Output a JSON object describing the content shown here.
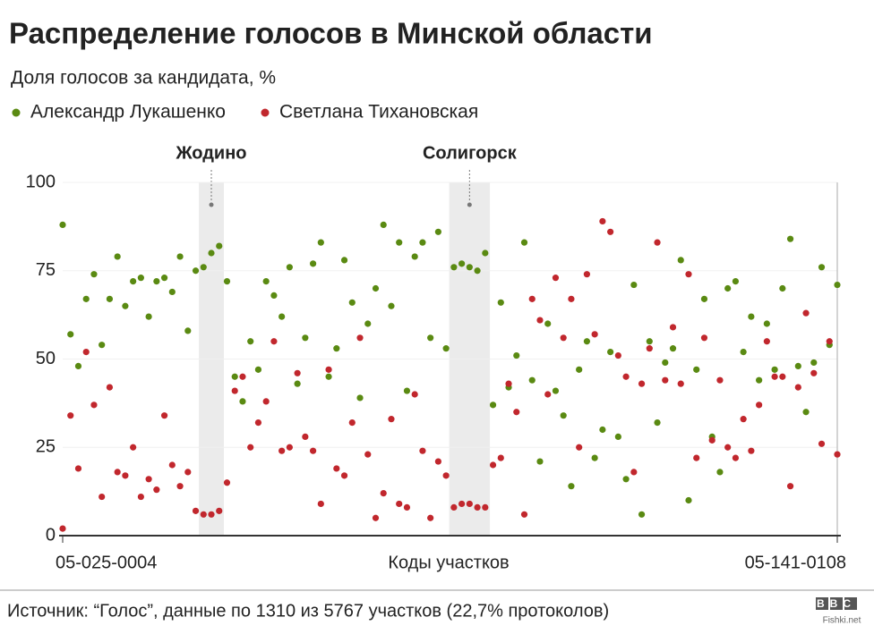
{
  "chart_data": {
    "type": "scatter",
    "title": "Распределение голосов в Минской области",
    "subtitle": "Доля голосов за кандидата, %",
    "xlabel": "Коды участков",
    "source": "Источник: “Голос”, данные по 1310 из 5767 участков (22,7% протоколов)",
    "logo": "BBC",
    "watermark": "Fishki.net",
    "ylim": [
      0,
      100
    ],
    "yticks": [
      0,
      25,
      50,
      75,
      100
    ],
    "grid": true,
    "annotations": [
      {
        "label": "Жодино",
        "from": 18,
        "to": 20
      },
      {
        "label": "Солигорск",
        "from": 50,
        "to": 54
      }
    ],
    "categories": [
      "05-025-0004",
      null,
      null,
      null,
      null,
      null,
      null,
      null,
      null,
      null,
      null,
      null,
      null,
      null,
      null,
      null,
      null,
      null,
      null,
      null,
      null,
      null,
      null,
      null,
      null,
      null,
      null,
      null,
      null,
      null,
      null,
      null,
      null,
      null,
      null,
      null,
      null,
      null,
      null,
      null,
      null,
      null,
      null,
      null,
      null,
      null,
      null,
      null,
      null,
      null,
      null,
      null,
      null,
      null,
      null,
      null,
      null,
      null,
      null,
      null,
      null,
      null,
      null,
      null,
      null,
      null,
      null,
      null,
      null,
      null,
      null,
      null,
      null,
      null,
      null,
      null,
      null,
      null,
      null,
      null,
      null,
      null,
      null,
      null,
      null,
      null,
      null,
      null,
      null,
      null,
      null,
      null,
      null,
      null,
      null,
      null,
      null,
      null,
      null,
      "05-141-0108"
    ],
    "series": [
      {
        "name": "Александр Лукашенко",
        "color": "#5a8a12",
        "values": [
          88,
          57,
          48,
          67,
          74,
          54,
          67,
          79,
          65,
          72,
          73,
          62,
          72,
          73,
          69,
          79,
          58,
          75,
          76,
          80,
          82,
          72,
          45,
          38,
          55,
          47,
          72,
          68,
          62,
          76,
          43,
          56,
          77,
          83,
          45,
          53,
          78,
          66,
          39,
          60,
          70,
          88,
          65,
          83,
          41,
          79,
          83,
          56,
          86,
          53,
          76,
          77,
          76,
          75,
          80,
          37,
          66,
          42,
          51,
          83,
          44,
          21,
          60,
          41,
          34,
          14,
          47,
          55,
          22,
          30,
          52,
          28,
          16,
          71,
          6,
          55,
          32,
          49,
          53,
          78,
          10,
          47,
          67,
          28,
          18,
          70,
          72,
          52,
          62,
          44,
          60,
          47,
          70,
          84,
          48,
          35,
          49,
          76,
          54,
          71
        ]
      },
      {
        "name": "Светлана Тихановская",
        "color": "#c1272d",
        "values": [
          2,
          34,
          19,
          52,
          37,
          11,
          42,
          18,
          17,
          25,
          11,
          16,
          13,
          34,
          20,
          14,
          18,
          7,
          6,
          6,
          7,
          15,
          41,
          45,
          25,
          32,
          38,
          55,
          24,
          25,
          46,
          28,
          24,
          9,
          47,
          19,
          17,
          32,
          56,
          23,
          5,
          12,
          33,
          9,
          8,
          40,
          24,
          5,
          21,
          17,
          8,
          9,
          9,
          8,
          8,
          20,
          22,
          43,
          35,
          6,
          67,
          61,
          40,
          73,
          56,
          67,
          25,
          74,
          57,
          89,
          86,
          51,
          45,
          18,
          43,
          53,
          83,
          44,
          59,
          43,
          74,
          22,
          56,
          27,
          44,
          25,
          22,
          33,
          24,
          37,
          55,
          45,
          45,
          14,
          42,
          63,
          46,
          26,
          55,
          23
        ]
      }
    ]
  }
}
